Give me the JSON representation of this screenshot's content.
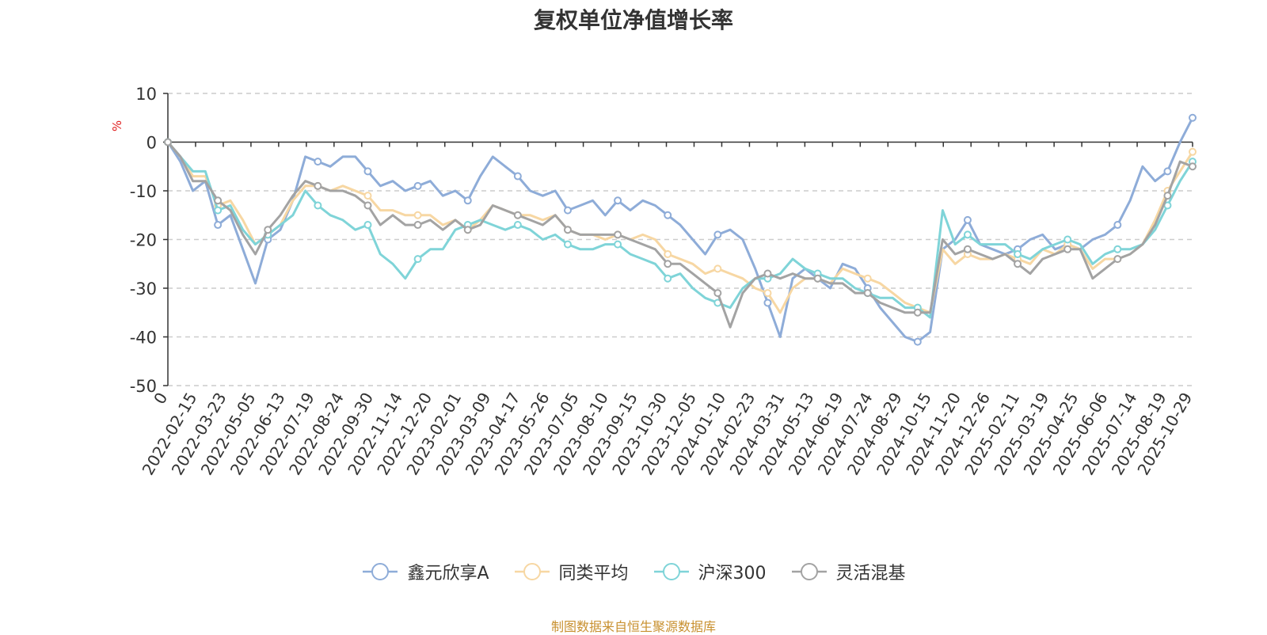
{
  "chart_data": {
    "type": "line",
    "title": "复权单位净值增长率",
    "ylabel": "%",
    "ylim": [
      -50,
      10
    ],
    "yticks": [
      10,
      0,
      -10,
      -20,
      -30,
      -40,
      -50
    ],
    "grid": true,
    "legend_position": "bottom",
    "x_tick_labels": [
      "0",
      "2022-02-15",
      "2022-03-23",
      "2022-05-05",
      "2022-06-13",
      "2022-07-19",
      "2022-08-24",
      "2022-09-30",
      "2022-11-14",
      "2022-12-20",
      "2023-02-01",
      "2023-03-09",
      "2023-04-17",
      "2023-05-26",
      "2023-07-05",
      "2023-08-10",
      "2023-09-15",
      "2023-10-30",
      "2023-12-05",
      "2024-01-10",
      "2024-02-23",
      "2024-03-31",
      "2024-05-13",
      "2024-06-19",
      "2024-07-24",
      "2024-08-29",
      "2024-10-15",
      "2024-11-20",
      "2024-12-26",
      "2025-02-11",
      "2025-03-19",
      "2025-04-25",
      "2025-06-06",
      "2025-07-14",
      "2025-08-19",
      "2025-10-29"
    ],
    "series": [
      {
        "name": "鑫元欣享A",
        "color": "#8eacd8",
        "values": [
          0,
          -4,
          -10,
          -8,
          -17,
          -15,
          -22,
          -29,
          -20,
          -18,
          -12,
          -3,
          -4,
          -5,
          -3,
          -3,
          -6,
          -9,
          -8,
          -10,
          -9,
          -8,
          -11,
          -10,
          -12,
          -7,
          -3,
          -5,
          -7,
          -10,
          -11,
          -10,
          -14,
          -13,
          -12,
          -15,
          -12,
          -14,
          -12,
          -13,
          -15,
          -17,
          -20,
          -23,
          -19,
          -18,
          -20,
          -26,
          -33,
          -40,
          -28,
          -26,
          -28,
          -30,
          -25,
          -26,
          -30,
          -34,
          -37,
          -40,
          -41,
          -39,
          -22,
          -20,
          -16,
          -21,
          -22,
          -23,
          -22,
          -20,
          -19,
          -22,
          -21,
          -22,
          -20,
          -19,
          -17,
          -12,
          -5,
          -8,
          -6,
          0,
          5
        ]
      },
      {
        "name": "同类平均",
        "color": "#f7d7a3",
        "values": [
          0,
          -3,
          -7,
          -7,
          -13,
          -12,
          -16,
          -21,
          -19,
          -17,
          -12,
          -9,
          -9,
          -10,
          -9,
          -10,
          -11,
          -14,
          -14,
          -15,
          -15,
          -15,
          -17,
          -16,
          -18,
          -16,
          -13,
          -14,
          -15,
          -15,
          -16,
          -15,
          -18,
          -19,
          -19,
          -20,
          -19,
          -20,
          -19,
          -20,
          -23,
          -24,
          -25,
          -27,
          -26,
          -27,
          -28,
          -30,
          -31,
          -35,
          -30,
          -28,
          -28,
          -29,
          -26,
          -27,
          -28,
          -29,
          -31,
          -33,
          -34,
          -35,
          -22,
          -25,
          -23,
          -24,
          -24,
          -23,
          -24,
          -25,
          -22,
          -23,
          -21,
          -22,
          -26,
          -24,
          -24,
          -23,
          -21,
          -16,
          -10,
          -6,
          -2
        ]
      },
      {
        "name": "沪深300",
        "color": "#7fd4d8",
        "values": [
          0,
          -3,
          -6,
          -6,
          -14,
          -13,
          -18,
          -21,
          -19,
          -17,
          -15,
          -10,
          -13,
          -15,
          -16,
          -18,
          -17,
          -23,
          -25,
          -28,
          -24,
          -22,
          -22,
          -18,
          -17,
          -16,
          -17,
          -18,
          -17,
          -18,
          -20,
          -19,
          -21,
          -22,
          -22,
          -21,
          -21,
          -23,
          -24,
          -25,
          -28,
          -27,
          -30,
          -32,
          -33,
          -34,
          -30,
          -28,
          -28,
          -27,
          -24,
          -26,
          -27,
          -28,
          -28,
          -30,
          -31,
          -32,
          -32,
          -34,
          -34,
          -36,
          -14,
          -21,
          -19,
          -21,
          -21,
          -21,
          -23,
          -24,
          -22,
          -21,
          -20,
          -21,
          -25,
          -23,
          -22,
          -22,
          -21,
          -18,
          -13,
          -8,
          -4
        ]
      },
      {
        "name": "灵活混基",
        "color": "#a3a3a3",
        "values": [
          0,
          -3,
          -8,
          -8,
          -12,
          -14,
          -19,
          -23,
          -18,
          -15,
          -11,
          -8,
          -9,
          -10,
          -10,
          -11,
          -13,
          -17,
          -15,
          -17,
          -17,
          -16,
          -18,
          -16,
          -18,
          -17,
          -13,
          -14,
          -15,
          -16,
          -17,
          -15,
          -18,
          -19,
          -19,
          -19,
          -19,
          -20,
          -21,
          -22,
          -25,
          -25,
          -27,
          -29,
          -31,
          -38,
          -31,
          -28,
          -27,
          -28,
          -27,
          -28,
          -28,
          -29,
          -29,
          -31,
          -31,
          -33,
          -34,
          -35,
          -35,
          -35,
          -20,
          -23,
          -22,
          -23,
          -24,
          -23,
          -25,
          -27,
          -24,
          -23,
          -22,
          -22,
          -28,
          -26,
          -24,
          -23,
          -21,
          -17,
          -11,
          -4,
          -5
        ]
      }
    ],
    "source": "制图数据来自恒生聚源数据库"
  }
}
